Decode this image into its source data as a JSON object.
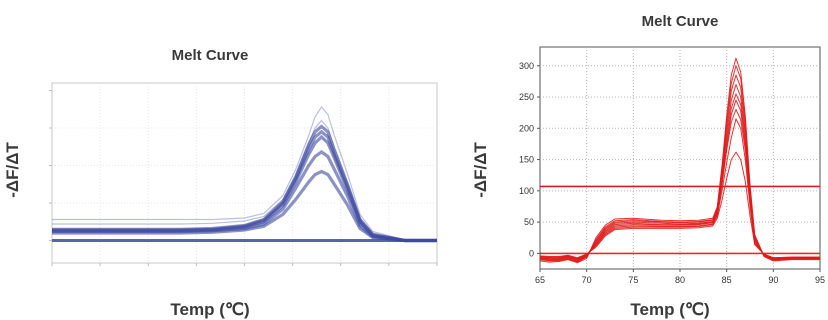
{
  "chart_data": [
    {
      "type": "line",
      "title": "Melt Curve",
      "ylabel": "-ΔF/ΔT",
      "xlabel": "Temp (℃)",
      "grid": true,
      "line_color": "#3d4aa0",
      "x": [
        65,
        67.5,
        70,
        72.5,
        75,
        77.5,
        80,
        81.5,
        83,
        84,
        85,
        85.5,
        86,
        86.5,
        87,
        88,
        89,
        90,
        92.5,
        95
      ],
      "series": [
        {
          "values": [
            28,
            28,
            28,
            28,
            28,
            28,
            30,
            36,
            60,
            95,
            140,
            165,
            178,
            168,
            140,
            90,
            35,
            12,
            1,
            0
          ]
        },
        {
          "values": [
            22,
            22,
            22,
            22,
            22,
            23,
            26,
            32,
            55,
            88,
            130,
            150,
            160,
            150,
            125,
            80,
            30,
            10,
            1,
            0
          ]
        },
        {
          "values": [
            15,
            15,
            15,
            15,
            15,
            16,
            20,
            28,
            52,
            85,
            128,
            145,
            152,
            145,
            120,
            75,
            28,
            8,
            0,
            0
          ]
        },
        {
          "values": [
            14,
            14,
            14,
            14,
            14,
            15,
            19,
            27,
            50,
            82,
            122,
            138,
            145,
            138,
            115,
            72,
            26,
            7,
            0,
            0
          ]
        },
        {
          "values": [
            13,
            13,
            13,
            13,
            13,
            14,
            18,
            25,
            47,
            78,
            115,
            130,
            138,
            130,
            110,
            68,
            24,
            6,
            0,
            0
          ]
        },
        {
          "values": [
            12,
            12,
            12,
            12,
            12,
            13,
            16,
            22,
            42,
            70,
            100,
            112,
            118,
            112,
            95,
            60,
            20,
            5,
            0,
            0
          ]
        },
        {
          "values": [
            10,
            10,
            10,
            10,
            10,
            11,
            14,
            19,
            35,
            55,
            78,
            88,
            92,
            88,
            75,
            48,
            16,
            4,
            0,
            0
          ]
        },
        {
          "values": [
            0,
            0,
            0,
            0,
            0,
            0,
            0,
            0,
            0,
            0,
            0,
            0,
            0,
            0,
            0,
            0,
            0,
            0,
            0,
            0
          ]
        }
      ]
    },
    {
      "type": "line",
      "title": "Melt Curve",
      "ylabel": "-ΔF/ΔT",
      "xlabel": "Temp (℃)",
      "grid": true,
      "line_color": "#e01b1b",
      "xlim": [
        65,
        95
      ],
      "ylim": [
        -25,
        330
      ],
      "x_ticks": [
        "65",
        "70",
        "75",
        "80",
        "85",
        "90",
        "95"
      ],
      "y_ticks": [
        "0",
        "50",
        "100",
        "150",
        "200",
        "250",
        "300"
      ],
      "threshold": 107,
      "x": [
        65,
        66,
        67,
        68,
        69,
        70,
        71,
        72,
        73,
        75,
        78,
        80,
        82,
        83.5,
        84,
        84.5,
        85,
        85.5,
        86,
        86.5,
        87,
        87.5,
        88,
        89,
        90,
        92,
        95
      ],
      "series": [
        {
          "values": [
            -12,
            -14,
            -13,
            -10,
            -15,
            -8,
            25,
            45,
            55,
            56,
            53,
            52,
            53,
            56,
            75,
            140,
            220,
            285,
            312,
            290,
            220,
            110,
            30,
            -5,
            -12,
            -10,
            -10
          ]
        },
        {
          "values": [
            -10,
            -12,
            -12,
            -9,
            -14,
            -6,
            22,
            42,
            52,
            54,
            51,
            50,
            51,
            54,
            72,
            135,
            210,
            272,
            300,
            280,
            210,
            105,
            28,
            -4,
            -11,
            -9,
            -9
          ]
        },
        {
          "values": [
            -9,
            -11,
            -11,
            -8,
            -13,
            -5,
            20,
            40,
            50,
            52,
            50,
            49,
            50,
            53,
            70,
            130,
            200,
            260,
            285,
            265,
            200,
            100,
            26,
            -4,
            -10,
            -9,
            -9
          ]
        },
        {
          "values": [
            -8,
            -10,
            -10,
            -7,
            -12,
            -4,
            18,
            38,
            48,
            50,
            48,
            47,
            48,
            51,
            68,
            125,
            190,
            245,
            270,
            250,
            190,
            95,
            24,
            -3,
            -9,
            -8,
            -8
          ]
        },
        {
          "values": [
            -7,
            -9,
            -9,
            -6,
            -11,
            -3,
            16,
            36,
            46,
            48,
            46,
            46,
            47,
            50,
            66,
            120,
            180,
            232,
            255,
            238,
            180,
            90,
            22,
            -3,
            -9,
            -8,
            -8
          ]
        },
        {
          "values": [
            -6,
            -8,
            -8,
            -5,
            -10,
            -3,
            15,
            34,
            44,
            46,
            45,
            45,
            46,
            49,
            64,
            115,
            172,
            222,
            245,
            228,
            172,
            86,
            20,
            -2,
            -8,
            -7,
            -7
          ]
        },
        {
          "values": [
            -5,
            -7,
            -7,
            -4,
            -9,
            -2,
            13,
            32,
            42,
            44,
            43,
            43,
            44,
            47,
            62,
            110,
            165,
            210,
            230,
            214,
            165,
            82,
            18,
            -2,
            -8,
            -7,
            -7
          ]
        },
        {
          "values": [
            -5,
            -6,
            -6,
            -4,
            -8,
            -2,
            12,
            30,
            40,
            42,
            42,
            42,
            43,
            46,
            60,
            100,
            145,
            185,
            215,
            200,
            150,
            75,
            16,
            -2,
            -7,
            -6,
            -6
          ]
        },
        {
          "values": [
            -4,
            -5,
            -5,
            -3,
            -7,
            -1,
            10,
            28,
            38,
            40,
            40,
            40,
            41,
            44,
            56,
            85,
            120,
            150,
            162,
            150,
            115,
            60,
            14,
            -1,
            -7,
            -6,
            -6
          ]
        },
        {
          "values": [
            0,
            0,
            0,
            0,
            0,
            0,
            0,
            0,
            0,
            0,
            0,
            0,
            0,
            0,
            0,
            0,
            0,
            0,
            0,
            0,
            0,
            0,
            0,
            0,
            0,
            0,
            0
          ]
        }
      ]
    }
  ]
}
